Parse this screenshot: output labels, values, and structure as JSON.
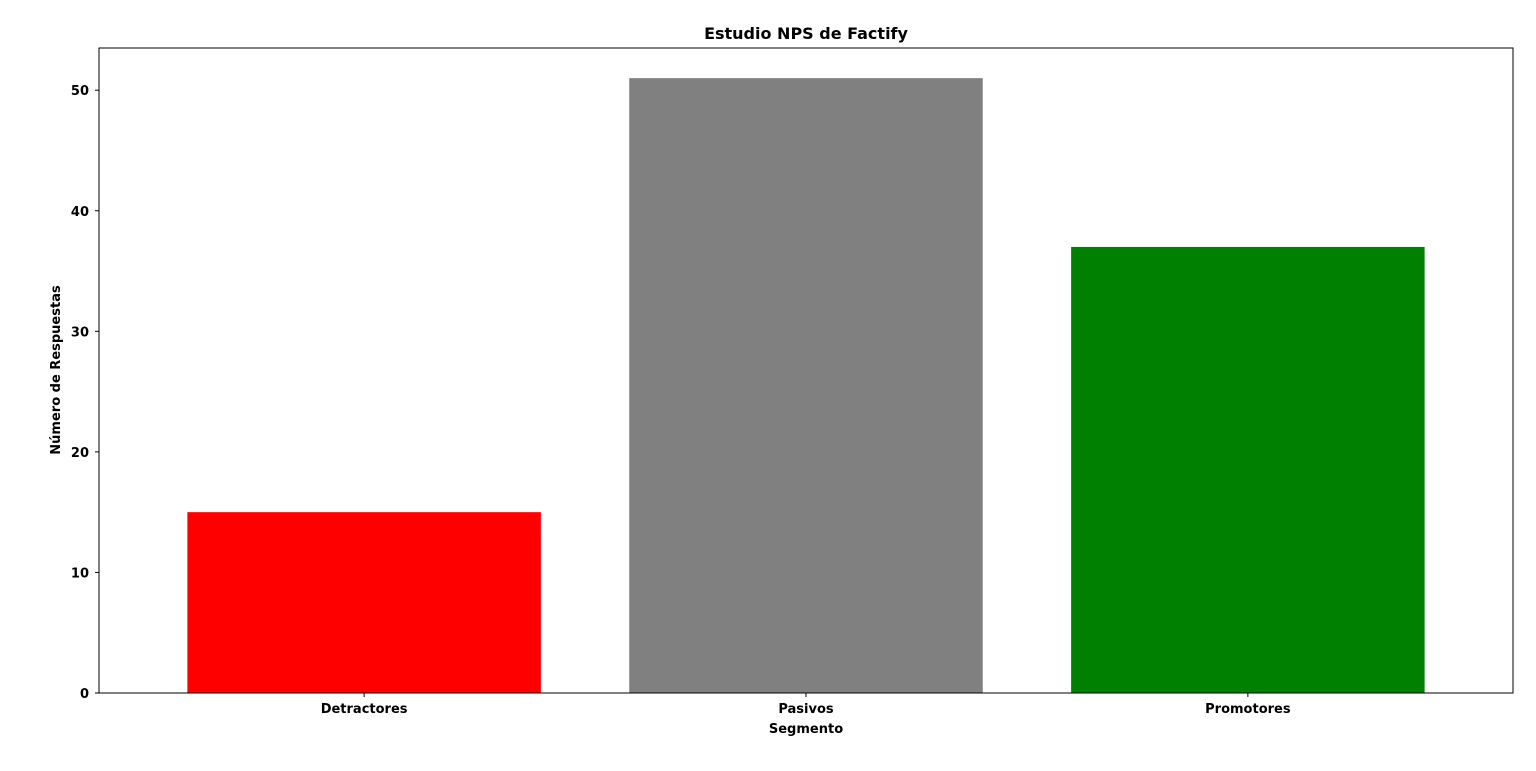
{
  "chart_data": {
    "type": "bar",
    "title": "Estudio NPS de Factify",
    "xlabel": "Segmento",
    "ylabel": "Número de Respuestas",
    "categories": [
      "Detractores",
      "Pasivos",
      "Promotores"
    ],
    "values": [
      15,
      51,
      37
    ],
    "colors": [
      "#ff0000",
      "#808080",
      "#008000"
    ],
    "ylim": [
      0,
      53.5
    ],
    "yticks": [
      0,
      10,
      20,
      30,
      40,
      50
    ],
    "grid": false,
    "legend": "none"
  }
}
